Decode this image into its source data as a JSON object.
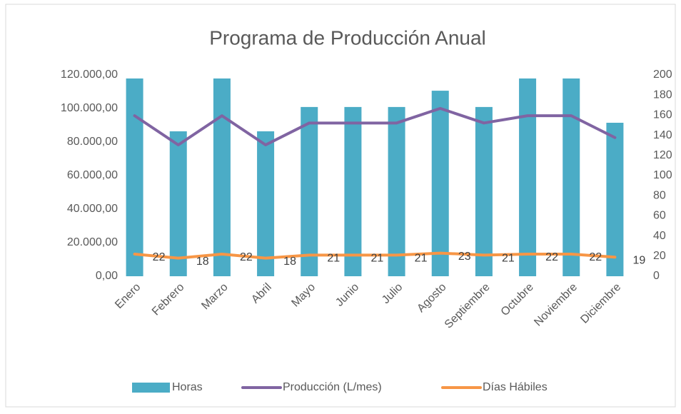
{
  "chart_data": {
    "type": "bar",
    "title": "Programa de Producción Anual",
    "categories": [
      "Enero",
      "Febrero",
      "Marzo",
      "Abril",
      "Mayo",
      "Junio",
      "Julio",
      "Agosto",
      "Septiembre",
      "Octubre",
      "Noviembre",
      "Diciembre"
    ],
    "series": [
      {
        "name": "Horas",
        "type": "bar",
        "color": "#4bacc6",
        "values": [
          117900,
          86400,
          117900,
          86400,
          100900,
          100900,
          100900,
          110600,
          100900,
          117900,
          117900,
          91500
        ]
      },
      {
        "name": "Producción (L/mes)",
        "type": "line",
        "color": "#8064a2",
        "values": [
          95700,
          78300,
          95700,
          78300,
          91350,
          91350,
          91350,
          100050,
          91350,
          95700,
          95700,
          82650
        ]
      },
      {
        "name": "Días Hábiles",
        "type": "line",
        "axis": "y2",
        "color": "#f79646",
        "values": [
          22,
          18,
          22,
          18,
          21,
          21,
          21,
          23,
          21,
          22,
          22,
          19
        ],
        "data_labels": true
      }
    ],
    "ylim": [
      0,
      120000
    ],
    "yticks": [
      {
        "value": 0,
        "label": "0,00"
      },
      {
        "value": 20000,
        "label": "20.000,00"
      },
      {
        "value": 40000,
        "label": "40.000,00"
      },
      {
        "value": 60000,
        "label": "60.000,00"
      },
      {
        "value": 80000,
        "label": "80.000,00"
      },
      {
        "value": 100000,
        "label": "100.000,00"
      },
      {
        "value": 120000,
        "label": "120.000,00"
      }
    ],
    "y2lim": [
      0,
      200
    ],
    "y2ticks": [
      0,
      20,
      40,
      60,
      80,
      100,
      120,
      140,
      160,
      180,
      200
    ],
    "legend": "bottom"
  }
}
